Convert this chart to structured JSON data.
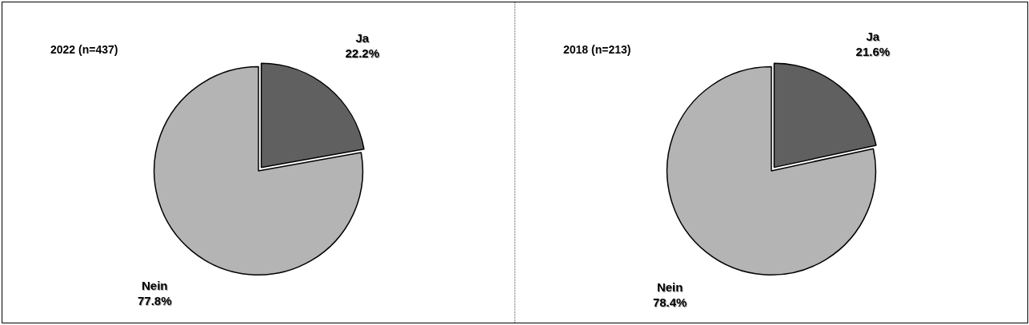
{
  "chart_data": [
    {
      "type": "pie",
      "title": "2022 (n=437)",
      "categories": [
        "Ja",
        "Nein"
      ],
      "values": [
        22.2,
        77.8
      ],
      "colors": [
        "#606060",
        "#b4b4b4"
      ],
      "value_labels": [
        "22.2%",
        "77.8%"
      ]
    },
    {
      "type": "pie",
      "title": "2018 (n=213)",
      "categories": [
        "Ja",
        "Nein"
      ],
      "values": [
        21.6,
        78.4
      ],
      "colors": [
        "#606060",
        "#b4b4b4"
      ],
      "value_labels": [
        "21.6%",
        "78.4%"
      ]
    }
  ]
}
